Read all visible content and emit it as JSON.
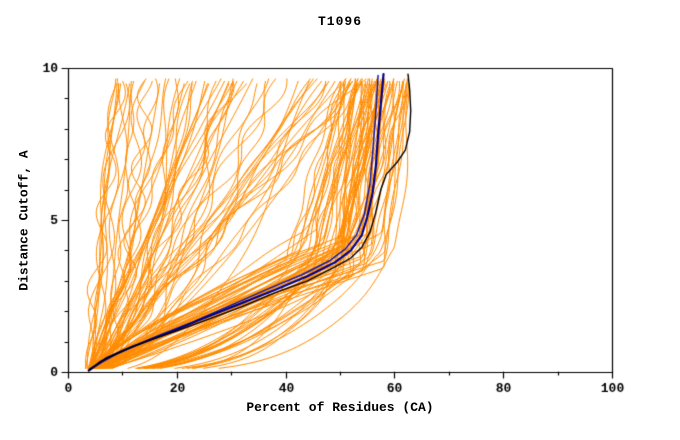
{
  "chart_data": {
    "type": "line",
    "title": "T1096",
    "xlabel": "Percent of Residues (CA)",
    "ylabel": "Distance Cutoff, A",
    "xlim": [
      0,
      100
    ],
    "ylim": [
      0,
      10
    ],
    "x_major_ticks": [
      0,
      20,
      40,
      60,
      80,
      100
    ],
    "x_minor_step": 10,
    "y_major_ticks": [
      0,
      5,
      10
    ],
    "y_minor_step": 1,
    "grid": false,
    "legend": "none",
    "background": "#ffffff",
    "frame_color": "#000000",
    "ensemble": {
      "name": "prediction-curves",
      "color": "#ff8c00",
      "count": 130,
      "seed": 42,
      "line_width": 1,
      "x_start_range": [
        3.2,
        5.2
      ],
      "top_y": 9.6,
      "bundle_top_x_range": [
        50,
        63
      ],
      "fan_top_x_range": [
        8,
        54
      ]
    },
    "reference_series": [
      {
        "name": "navy-secondary",
        "color": "#1a1aa0",
        "width": 1.5,
        "points": [
          [
            4,
            0.1
          ],
          [
            9,
            0.6
          ],
          [
            16,
            1.15
          ],
          [
            23,
            1.65
          ],
          [
            30,
            2.2
          ],
          [
            37,
            2.75
          ],
          [
            43,
            3.2
          ],
          [
            48,
            3.65
          ],
          [
            51,
            4.05
          ],
          [
            53,
            4.5
          ],
          [
            54.5,
            5.2
          ],
          [
            55.5,
            6.2
          ],
          [
            56,
            7.2
          ],
          [
            56.5,
            8.3
          ],
          [
            57,
            9.75
          ]
        ]
      },
      {
        "name": "navy-main",
        "color": "#00008b",
        "width": 2.2,
        "points": [
          [
            3.8,
            0.05
          ],
          [
            7,
            0.45
          ],
          [
            12,
            0.85
          ],
          [
            18,
            1.25
          ],
          [
            24,
            1.7
          ],
          [
            31,
            2.2
          ],
          [
            38,
            2.7
          ],
          [
            44,
            3.15
          ],
          [
            49,
            3.6
          ],
          [
            52,
            4.0
          ],
          [
            54,
            4.5
          ],
          [
            55,
            5.1
          ],
          [
            56,
            5.9
          ],
          [
            56.6,
            6.8
          ],
          [
            57,
            7.8
          ],
          [
            57.5,
            8.8
          ],
          [
            58,
            9.8
          ]
        ]
      },
      {
        "name": "black-reference",
        "color": "#000000",
        "width": 1.4,
        "points": [
          [
            3.8,
            0.05
          ],
          [
            6,
            0.35
          ],
          [
            10,
            0.7
          ],
          [
            15,
            1.05
          ],
          [
            20,
            1.35
          ],
          [
            26,
            1.75
          ],
          [
            32,
            2.15
          ],
          [
            38,
            2.6
          ],
          [
            44,
            3.0
          ],
          [
            49,
            3.45
          ],
          [
            52,
            3.75
          ],
          [
            54,
            4.1
          ],
          [
            55.5,
            4.6
          ],
          [
            56.5,
            5.2
          ],
          [
            57.5,
            6.0
          ],
          [
            58.5,
            6.5
          ],
          [
            60.5,
            6.9
          ],
          [
            62,
            7.3
          ],
          [
            62.8,
            7.9
          ],
          [
            63,
            8.6
          ],
          [
            62.8,
            9.3
          ],
          [
            62.5,
            9.8
          ]
        ]
      }
    ]
  }
}
